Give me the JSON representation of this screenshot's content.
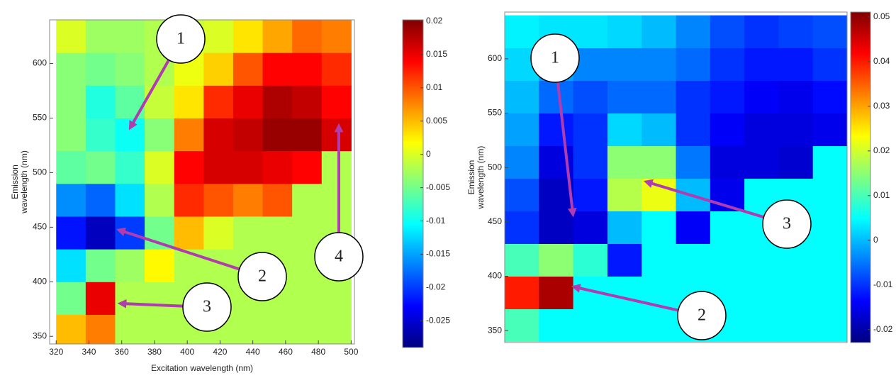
{
  "chart_data": [
    {
      "type": "heatmap",
      "x": [
        329,
        347,
        365,
        383,
        401,
        419,
        437,
        455,
        473,
        491
      ],
      "y": [
        355,
        385,
        415,
        445,
        475,
        505,
        535,
        565,
        595,
        625
      ],
      "values": [
        [
          0.005,
          0.008,
          -0.002,
          -0.002,
          -0.002,
          -0.002,
          -0.002,
          -0.002,
          -0.002,
          -0.002
        ],
        [
          -0.005,
          0.015,
          -0.002,
          -0.002,
          -0.002,
          -0.002,
          -0.002,
          -0.002,
          -0.002,
          -0.002
        ],
        [
          -0.012,
          -0.005,
          -0.003,
          0.002,
          -0.002,
          -0.002,
          -0.002,
          -0.002,
          -0.002,
          -0.002
        ],
        [
          -0.022,
          -0.026,
          -0.02,
          -0.005,
          0.005,
          0.0,
          -0.002,
          -0.002,
          -0.002,
          -0.002
        ],
        [
          -0.016,
          -0.018,
          -0.012,
          -0.002,
          0.012,
          0.01,
          0.008,
          0.01,
          -0.002,
          -0.002
        ],
        [
          -0.006,
          -0.005,
          -0.008,
          0.0,
          0.014,
          0.016,
          0.016,
          0.015,
          0.014,
          -0.002
        ],
        [
          -0.004,
          -0.008,
          -0.01,
          -0.004,
          0.008,
          0.016,
          0.017,
          0.019,
          0.019,
          0.016
        ],
        [
          -0.004,
          -0.009,
          -0.006,
          -0.001,
          0.003,
          0.012,
          0.015,
          0.018,
          0.017,
          0.014
        ],
        [
          -0.004,
          -0.005,
          -0.004,
          -0.002,
          0.001,
          0.004,
          0.01,
          0.014,
          0.014,
          0.012
        ],
        [
          0.0,
          -0.003,
          -0.003,
          -0.002,
          -0.001,
          0.0,
          0.003,
          0.006,
          0.009,
          0.008
        ]
      ],
      "xlim": [
        316,
        502
      ],
      "ylim": [
        343,
        640
      ],
      "xticks": [
        320,
        340,
        360,
        380,
        400,
        420,
        440,
        460,
        480,
        500
      ],
      "yticks": [
        350,
        400,
        450,
        500,
        550,
        600
      ],
      "clim": [
        -0.029,
        0.0202
      ],
      "cticks": [
        0.02,
        0.015,
        0.01,
        0.005,
        0,
        -0.005,
        -0.01,
        -0.015,
        -0.02,
        -0.025
      ],
      "xlabel": "Excitation wavelength (nm)",
      "ylabel": [
        "Emission",
        "wavelength (nm)"
      ],
      "annotations": [
        "1",
        "2",
        "3",
        "4"
      ]
    },
    {
      "type": "heatmap",
      "y": [
        355,
        385,
        415,
        445,
        475,
        505,
        535,
        565,
        595,
        625
      ],
      "values": [
        [
          0.01,
          0.005,
          0.005,
          0.005,
          0.005,
          0.005,
          0.005,
          0.005,
          0.005,
          0.005
        ],
        [
          0.04,
          0.048,
          0.005,
          0.005,
          0.005,
          0.005,
          0.005,
          0.005,
          0.005,
          0.005
        ],
        [
          0.01,
          0.015,
          0.008,
          -0.012,
          0.005,
          0.005,
          0.005,
          0.005,
          0.005,
          0.005
        ],
        [
          -0.01,
          -0.018,
          -0.016,
          0.0,
          0.005,
          -0.014,
          0.005,
          0.005,
          0.005,
          0.005
        ],
        [
          -0.008,
          -0.018,
          -0.012,
          0.018,
          0.022,
          0.0,
          -0.015,
          0.005,
          0.005,
          0.005
        ],
        [
          -0.004,
          -0.016,
          -0.01,
          0.015,
          0.015,
          -0.005,
          -0.016,
          -0.016,
          -0.017,
          0.005
        ],
        [
          -0.002,
          -0.012,
          -0.01,
          0.002,
          0.0,
          -0.01,
          -0.014,
          -0.016,
          -0.016,
          -0.015
        ],
        [
          0.0,
          -0.006,
          -0.008,
          -0.006,
          -0.006,
          -0.01,
          -0.012,
          -0.014,
          -0.015,
          -0.013
        ],
        [
          0.002,
          -0.002,
          -0.004,
          -0.004,
          -0.004,
          -0.006,
          -0.01,
          -0.012,
          -0.012,
          -0.01
        ],
        [
          0.004,
          0.003,
          0.003,
          0.002,
          0.0,
          -0.004,
          -0.008,
          -0.01,
          -0.009,
          -0.008
        ]
      ],
      "ylim": [
        339,
        643
      ],
      "yticks": [
        350,
        400,
        450,
        500,
        550,
        600
      ],
      "clim": [
        -0.0229,
        0.0511
      ],
      "cticks": [
        0.05,
        0.04,
        0.03,
        0.02,
        0.01,
        0,
        -0.01,
        -0.02
      ],
      "ylabel": [
        "Emission",
        "wavelength (nm)"
      ],
      "annotations": [
        "1",
        "2",
        "3"
      ]
    }
  ]
}
